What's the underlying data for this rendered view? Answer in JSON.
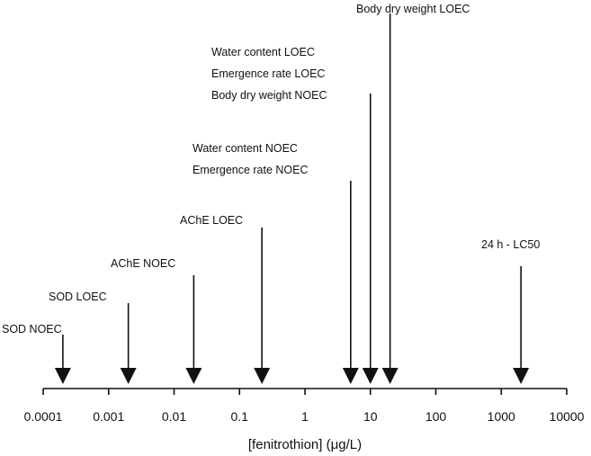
{
  "chart_data": {
    "type": "scatter",
    "xscale": "log",
    "xlim": [
      0.0001,
      10000
    ],
    "xlabel": "[fenitrothion] (μg/L)",
    "ticks": [
      {
        "value": 0.0001,
        "label": "0.0001"
      },
      {
        "value": 0.001,
        "label": "0.001"
      },
      {
        "value": 0.01,
        "label": "0.01"
      },
      {
        "value": 0.1,
        "label": "0.1"
      },
      {
        "value": 1,
        "label": "1"
      },
      {
        "value": 10,
        "label": "10"
      },
      {
        "value": 100,
        "label": "100"
      },
      {
        "value": 1000,
        "label": "1000"
      },
      {
        "value": 10000,
        "label": "10000"
      }
    ],
    "endpoints": [
      {
        "x": 0.0002,
        "labels": [
          "SOD NOEC"
        ]
      },
      {
        "x": 0.002,
        "labels": [
          "SOD LOEC"
        ]
      },
      {
        "x": 0.02,
        "labels": [
          "AChE NOEC"
        ]
      },
      {
        "x": 0.22,
        "labels": [
          "AChE  LOEC"
        ]
      },
      {
        "x": 5,
        "labels": [
          "Water content NOEC",
          "Emergence rate NOEC"
        ]
      },
      {
        "x": 10,
        "labels": [
          "Water content LOEC",
          "Emergence rate LOEC",
          "Body dry weight NOEC"
        ]
      },
      {
        "x": 20,
        "labels": [
          "Body dry weight LOEC"
        ]
      },
      {
        "x": 2000,
        "labels": [
          "24 h  -  LC50"
        ]
      }
    ],
    "grid": false,
    "legend": "none",
    "colors": {
      "ink": "#111111"
    }
  }
}
